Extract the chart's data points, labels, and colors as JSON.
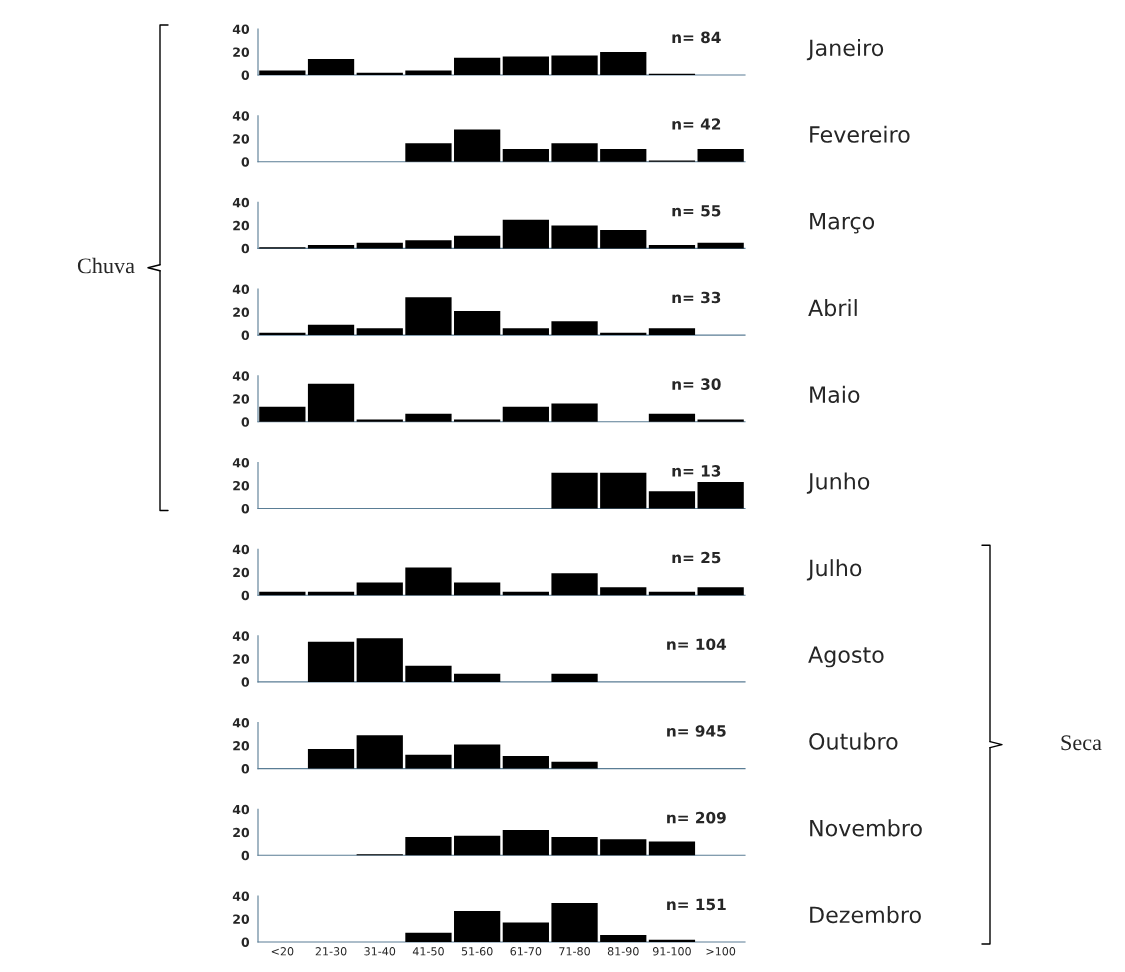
{
  "chart_data": [
    {
      "type": "bar",
      "categories": [
        null,
        null,
        null,
        null,
        null,
        null,
        null,
        null,
        null,
        null
      ],
      "values": [
        4,
        14,
        2,
        4,
        15,
        16,
        17,
        20,
        1,
        null
      ],
      "color": "#000000",
      "ylim": [
        0,
        40
      ],
      "yticks": [
        0,
        20,
        40
      ],
      "tick_labels": "y",
      "annotations": [
        "n= 84",
        "Janeiro",
        "Chuva"
      ]
    },
    {
      "type": "bar",
      "categories": [
        null,
        null,
        null,
        null,
        null,
        null,
        null,
        null,
        null,
        null
      ],
      "values": [
        null,
        null,
        null,
        16,
        28,
        11,
        16,
        11,
        1,
        11
      ],
      "color": "#000000",
      "ylim": [
        0,
        40
      ],
      "yticks": [
        0,
        20,
        40
      ],
      "tick_labels": "y",
      "annotations": [
        "n= 42",
        "Fevereiro"
      ]
    },
    {
      "type": "bar",
      "categories": [
        null,
        null,
        null,
        null,
        null,
        null,
        null,
        null,
        null,
        null
      ],
      "values": [
        1,
        3,
        5,
        7,
        11,
        25,
        20,
        16,
        3,
        5
      ],
      "color": "#000000",
      "ylim": [
        0,
        40
      ],
      "yticks": [
        0,
        20,
        40
      ],
      "tick_labels": "y",
      "annotations": [
        "n= 55",
        "Março"
      ]
    },
    {
      "type": "bar",
      "categories": [
        null,
        null,
        null,
        null,
        null,
        null,
        null,
        null,
        null,
        null
      ],
      "values": [
        2,
        9,
        6,
        33,
        21,
        6,
        12,
        2,
        6,
        null
      ],
      "color": "#000000",
      "ylim": [
        0,
        40
      ],
      "yticks": [
        0,
        20,
        40
      ],
      "tick_labels": "y",
      "annotations": [
        "n= 33",
        "Abril"
      ]
    },
    {
      "type": "bar",
      "categories": [
        null,
        null,
        null,
        null,
        null,
        null,
        null,
        null,
        null,
        null
      ],
      "values": [
        13,
        33,
        2,
        7,
        2,
        13,
        16,
        null,
        7,
        2
      ],
      "color": "#000000",
      "ylim": [
        0,
        40
      ],
      "yticks": [
        0,
        20,
        40
      ],
      "tick_labels": "y",
      "annotations": [
        "n= 30",
        "Maio"
      ]
    },
    {
      "type": "bar",
      "categories": [
        null,
        null,
        null,
        null,
        null,
        null,
        null,
        null,
        null,
        null
      ],
      "values": [
        null,
        null,
        null,
        null,
        null,
        null,
        31,
        31,
        15,
        23
      ],
      "color": "#000000",
      "ylim": [
        0,
        40
      ],
      "yticks": [
        0,
        20,
        40
      ],
      "tick_labels": "y",
      "annotations": [
        "n= 13",
        "Junho"
      ]
    },
    {
      "type": "bar",
      "categories": [
        null,
        null,
        null,
        null,
        null,
        null,
        null,
        null,
        null,
        null
      ],
      "values": [
        3,
        3,
        11,
        24,
        11,
        3,
        19,
        7,
        3,
        7
      ],
      "color": "#000000",
      "ylim": [
        0,
        40
      ],
      "yticks": [
        0,
        20,
        40
      ],
      "tick_labels": "y",
      "annotations": [
        "n= 25",
        "Julho",
        "Seca"
      ]
    },
    {
      "type": "bar",
      "categories": [
        null,
        null,
        null,
        null,
        null,
        null,
        null,
        null,
        null,
        null
      ],
      "values": [
        null,
        35,
        38,
        14,
        7,
        0,
        7,
        null,
        null,
        null
      ],
      "color": "#000000",
      "ylim": [
        0,
        40
      ],
      "yticks": [
        0,
        20,
        40
      ],
      "tick_labels": "y",
      "annotations": [
        "n= 104",
        "Agosto"
      ]
    },
    {
      "type": "bar",
      "categories": [
        null,
        null,
        null,
        null,
        null,
        null,
        null,
        null,
        null,
        null
      ],
      "values": [
        0,
        17,
        29,
        12,
        21,
        11,
        6,
        0,
        null,
        null
      ],
      "color": "#000000",
      "ylim": [
        0,
        40
      ],
      "yticks": [
        0,
        20,
        40
      ],
      "tick_labels": "y",
      "annotations": [
        "n= 945",
        "Outubro"
      ]
    },
    {
      "type": "bar",
      "categories": [
        null,
        null,
        null,
        null,
        null,
        null,
        null,
        null,
        null,
        null
      ],
      "values": [
        0,
        0,
        1,
        16,
        17,
        22,
        16,
        14,
        12,
        0
      ],
      "color": "#000000",
      "ylim": [
        0,
        40
      ],
      "yticks": [
        0,
        20,
        40
      ],
      "tick_labels": "y",
      "annotations": [
        "n= 209",
        "Novembro"
      ]
    },
    {
      "type": "bar",
      "categories": [
        "<20",
        "21-30",
        "31-40",
        "41-50",
        "51-60",
        "61-70",
        "71-80",
        "81-90",
        "91-100",
        ">100"
      ],
      "values": [
        null,
        null,
        null,
        8,
        27,
        17,
        34,
        6,
        2,
        0
      ],
      "color": "#000000",
      "ylim": [
        0,
        40
      ],
      "yticks": [
        0,
        20,
        40
      ],
      "annotations": [
        "n= 151",
        "Dezembro"
      ]
    }
  ]
}
